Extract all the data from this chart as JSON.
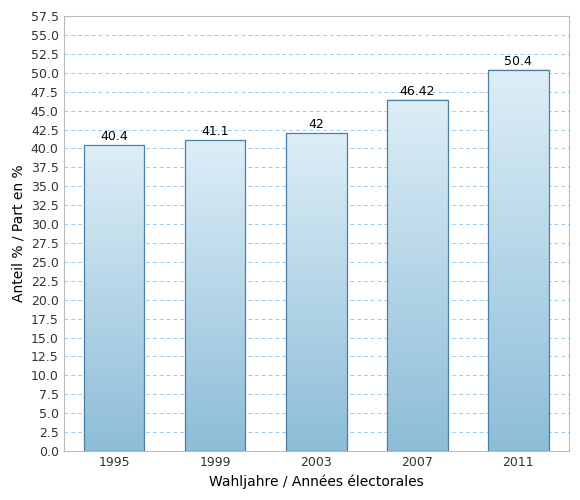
{
  "categories": [
    "1995",
    "1999",
    "2003",
    "2007",
    "2011"
  ],
  "values": [
    40.4,
    41.1,
    42.0,
    46.42,
    50.4
  ],
  "labels": [
    "40.4",
    "41.1",
    "42",
    "46.42",
    "50.4"
  ],
  "xlabel": "Wahljahre / Années électorales",
  "ylabel": "Anteil % / Part en %",
  "ylim": [
    0.0,
    57.5
  ],
  "yticks": [
    0.0,
    2.5,
    5.0,
    7.5,
    10.0,
    12.5,
    15.0,
    17.5,
    20.0,
    22.5,
    25.0,
    27.5,
    30.0,
    32.5,
    35.0,
    37.5,
    40.0,
    42.5,
    45.0,
    47.5,
    50.0,
    52.5,
    55.0,
    57.5
  ],
  "bar_color_top": "#ddeef7",
  "bar_color_bottom": "#8dbdd8",
  "bar_edge_color": "#4a7fa8",
  "background_color": "#ffffff",
  "grid_color": "#99ccee",
  "outer_border_color": "#aaaaaa",
  "label_fontsize": 9,
  "axis_fontsize": 9,
  "xlabel_fontsize": 10,
  "ylabel_fontsize": 10,
  "bar_width": 0.6,
  "figsize": [
    5.8,
    5.0
  ],
  "dpi": 100
}
